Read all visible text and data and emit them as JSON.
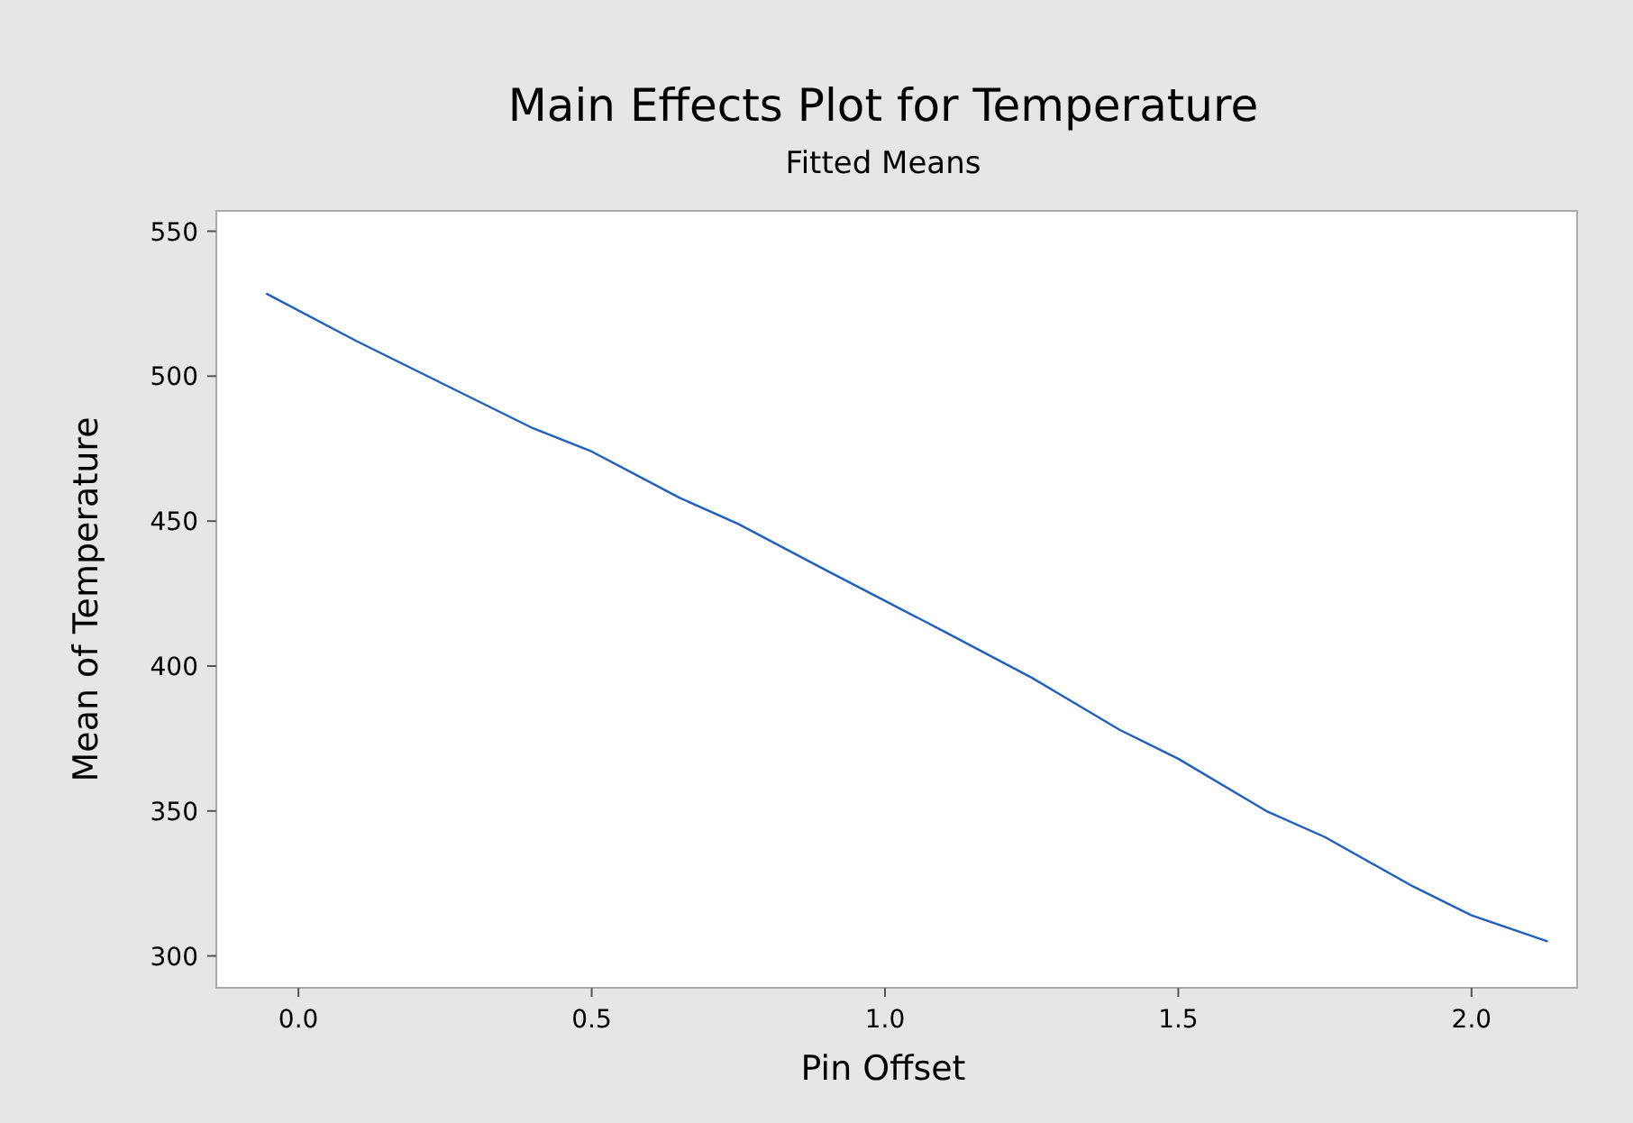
{
  "chart_data": {
    "type": "line",
    "title": "Main Effects Plot for Temperature",
    "subtitle": "Fitted Means",
    "xlabel": "Pin Offset",
    "ylabel": "Mean of Temperature",
    "x": [
      -0.055,
      0.1,
      0.25,
      0.4,
      0.5,
      0.65,
      0.75,
      0.9,
      1.0,
      1.1,
      1.25,
      1.4,
      1.5,
      1.65,
      1.75,
      1.9,
      2.0,
      2.13
    ],
    "series": [
      {
        "color": "#1f5fbf",
        "values": [
          528.5,
          512,
          497,
          482,
          474,
          458,
          449,
          433,
          422.5,
          412,
          396,
          378,
          368,
          350,
          341,
          324,
          314,
          305
        ]
      }
    ],
    "xlim": [
      -0.14,
      2.18
    ],
    "ylim": [
      289,
      557
    ],
    "xticks": [
      {
        "value": 0,
        "label": "0.0"
      },
      0.5,
      {
        "value": 1,
        "label": "1.0"
      },
      1.5,
      {
        "value": 2,
        "label": "2.0"
      }
    ],
    "yticks": [
      300,
      350,
      400,
      450,
      500,
      550
    ],
    "grid": false,
    "marker": "none",
    "line_style": "solid"
  }
}
